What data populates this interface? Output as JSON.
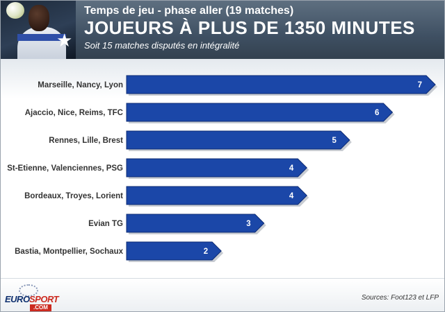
{
  "header": {
    "line1": "Temps de jeu - phase aller (19 matches)",
    "title": "JOUEURS À PLUS DE 1350 MINUTES",
    "subtitle": "Soit 15 matches disputés en intégralité"
  },
  "colors": {
    "bar": "#1b47a8",
    "bar_edge": "#0d2b73",
    "bar_shadow": "#9aa3ad"
  },
  "chart_data": {
    "type": "bar",
    "orientation": "horizontal",
    "categories": [
      "Marseille, Nancy, Lyon",
      "Ajaccio, Nice, Reims, TFC",
      "Rennes, Lille, Brest",
      "St-Etienne, Valenciennes, PSG",
      "Bordeaux, Troyes, Lorient",
      "Evian TG",
      "Bastia, Montpellier, Sochaux"
    ],
    "values": [
      7,
      6,
      5,
      4,
      4,
      3,
      2
    ],
    "xlim": [
      0,
      7
    ],
    "grid": false,
    "legend": "none"
  },
  "footer": {
    "logo_euro": "EURO",
    "logo_sport": "SPORT",
    "logo_com": ".COM",
    "sources": "Sources: Foot123 et LFP"
  }
}
